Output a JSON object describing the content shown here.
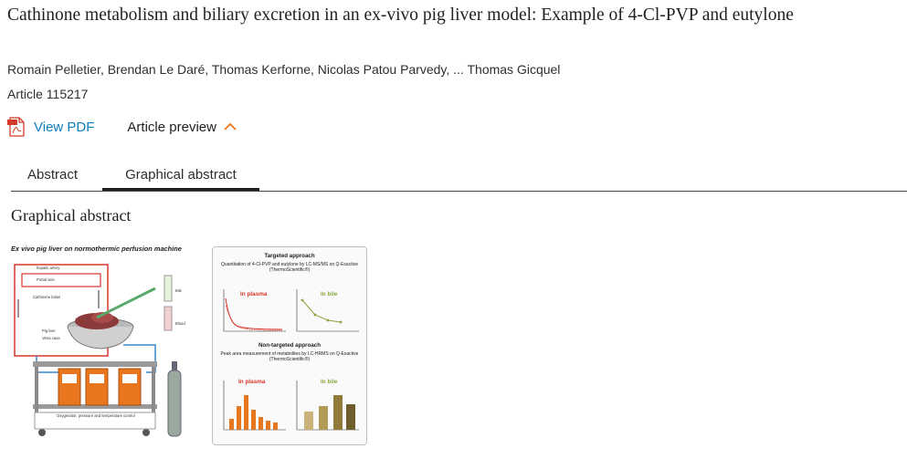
{
  "article": {
    "title": "Cathinone metabolism and biliary excretion in an ex-vivo pig liver model: Example of 4-Cl-PVP and eutylone",
    "authors": "Romain Pelletier, Brendan Le Daré, Thomas Kerforne, Nicolas Patou Parvedy, ... Thomas Gicquel",
    "article_number": "Article 115217"
  },
  "actions": {
    "view_pdf": "View PDF",
    "article_preview": "Article preview"
  },
  "tabs": [
    {
      "label": "Abstract",
      "active": false
    },
    {
      "label": "Graphical abstract",
      "active": true
    }
  ],
  "section": {
    "heading": "Graphical abstract"
  },
  "graphical_abstract": {
    "left_title": "Ex vivo pig liver on normothermic perfusion machine",
    "labels": {
      "hepatic_artery": "hepatic artery",
      "portal_vein": "Portal vein",
      "cathinone_bolus": "Cathinone bolus",
      "pig_liver": "Pig liver",
      "vena_cava": "Vena cava",
      "bile": "Bile",
      "blood": "Blood",
      "oxygen": "Oxygenator, pressure and temperature control"
    },
    "targeted": {
      "title": "Targeted approach",
      "subtitle": "Quantitation of 4-Cl-PVP and eutylone by LC-MS/MS on Q-Exactive (ThermoScientific®)",
      "plasma_label": "In plasma",
      "bile_label": "In bile"
    },
    "non_targeted": {
      "title": "Non-targeted approach",
      "subtitle": "Peak area measurement of metabolites by LC-HRMS on Q-Exactive (ThermoScientific®)",
      "plasma_label": "In plasma",
      "bile_label": "In bile"
    },
    "colors": {
      "plasma": "#d9362b",
      "bile": "#8aa63b",
      "orange": "#e8761e",
      "tan": "#c9b37a"
    }
  }
}
